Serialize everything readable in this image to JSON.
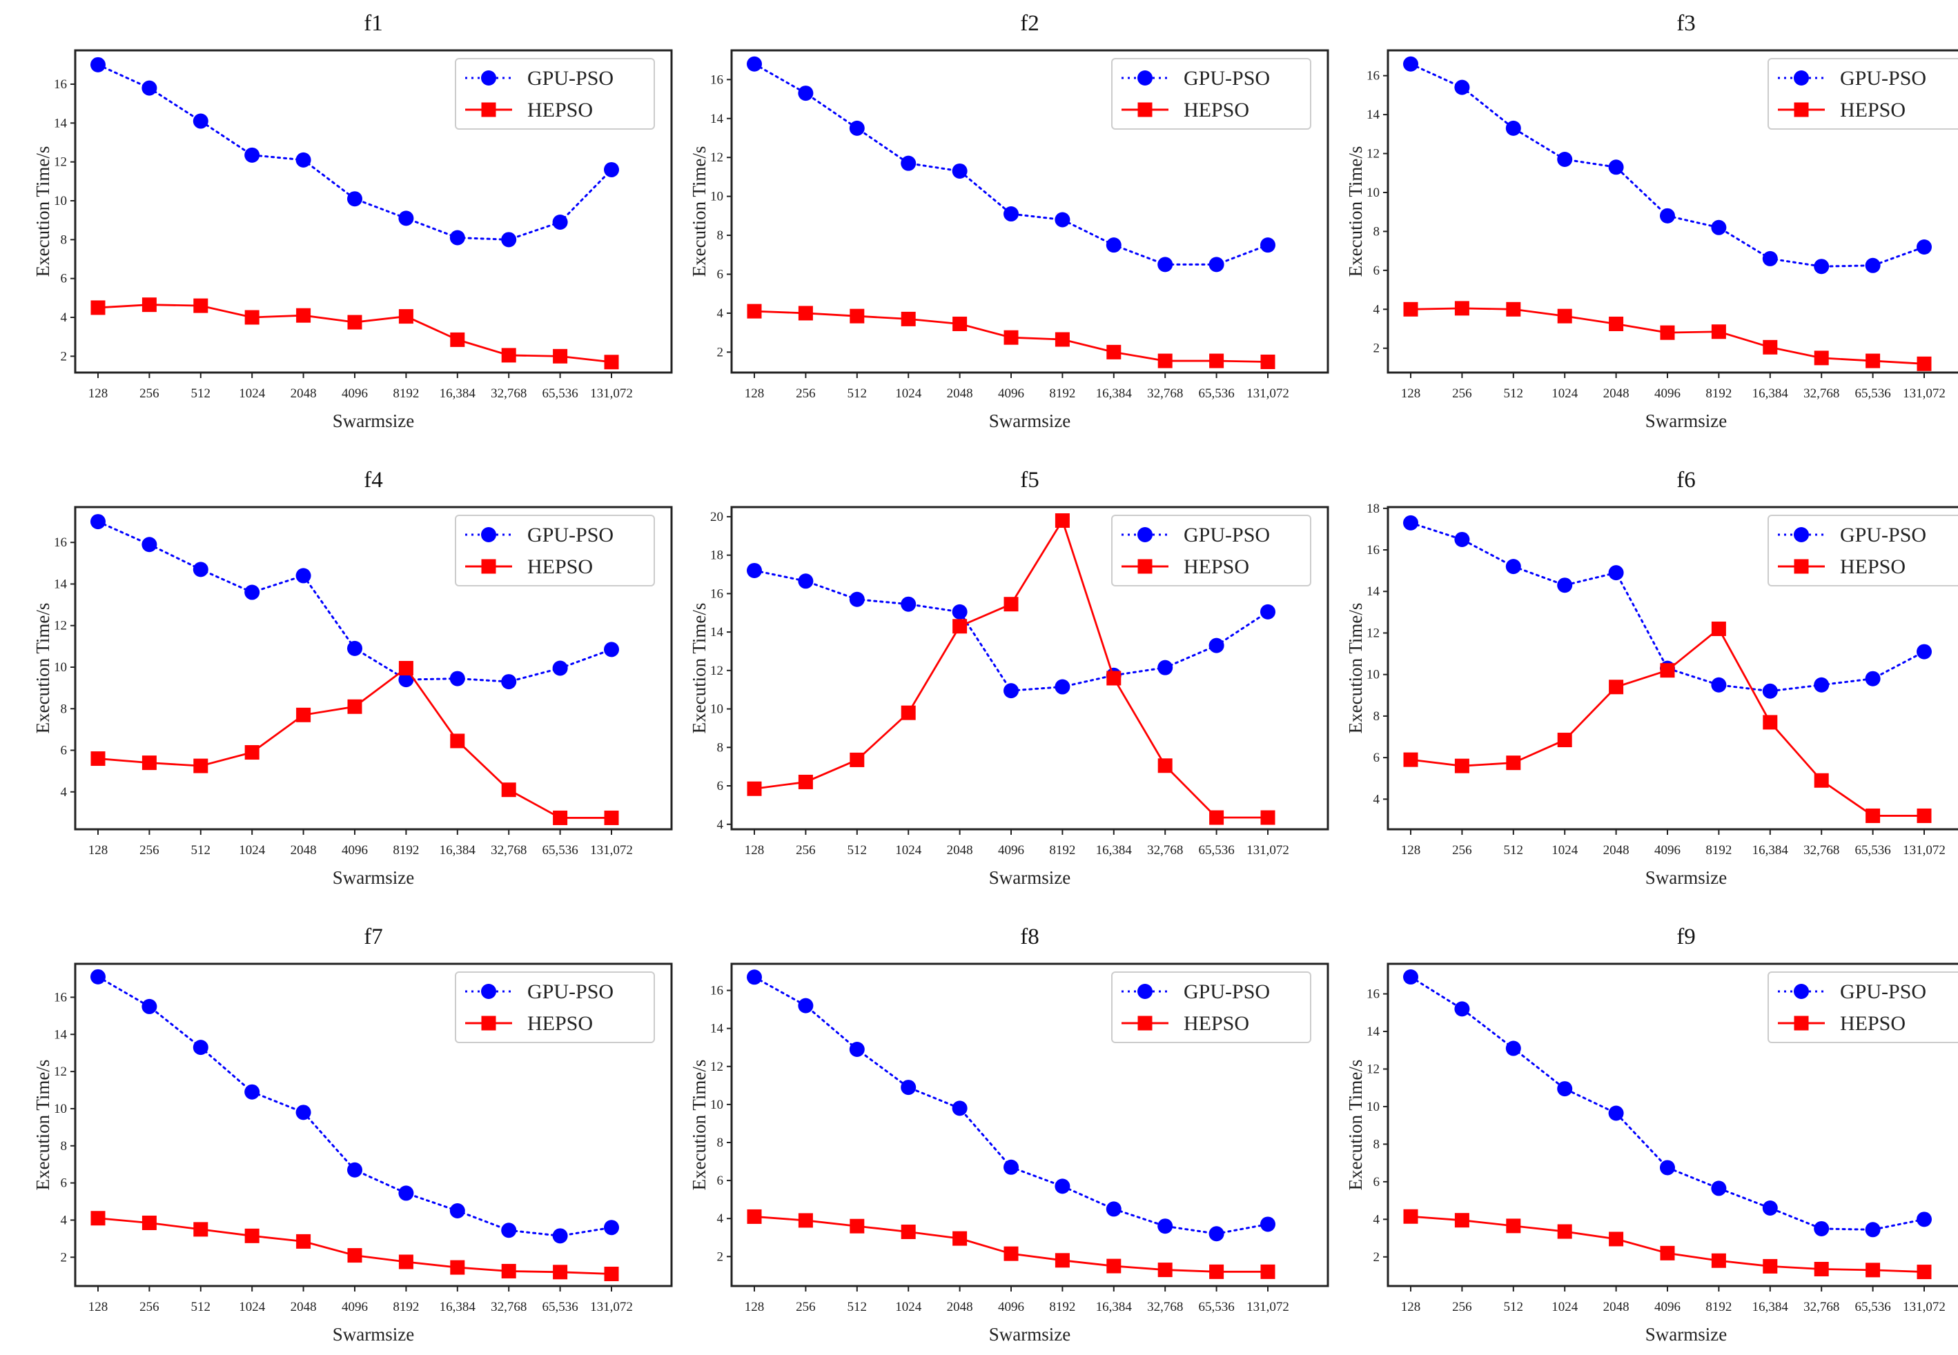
{
  "series_names": [
    "GPU-PSO",
    "HEPSO"
  ],
  "colors": {
    "GPU-PSO": "#0000ff",
    "HEPSO": "#ff0000"
  },
  "chart_data": [
    {
      "type": "line",
      "title": "f1",
      "xlabel": "Swarmsize",
      "ylabel": "Execution Time/s",
      "categories": [
        "128",
        "256",
        "512",
        "1024",
        "2048",
        "4096",
        "8192",
        "16,384",
        "32,768",
        "65,536",
        "131,072"
      ],
      "ylim": [
        1.16,
        17.74
      ],
      "yticks": [
        2,
        4,
        6,
        8,
        10,
        12,
        14,
        16
      ],
      "legend": "top-right",
      "series": [
        {
          "name": "GPU-PSO",
          "values": [
            17.0,
            15.8,
            14.1,
            12.35,
            12.1,
            10.1,
            9.1,
            8.1,
            8.0,
            8.9,
            11.6
          ]
        },
        {
          "name": "HEPSO",
          "values": [
            4.5,
            4.65,
            4.6,
            4.0,
            4.1,
            3.75,
            4.05,
            2.85,
            2.05,
            2.0,
            1.7
          ]
        }
      ]
    },
    {
      "type": "line",
      "title": "f2",
      "xlabel": "Swarmsize",
      "ylabel": "Execution Time/s",
      "categories": [
        "128",
        "256",
        "512",
        "1024",
        "2048",
        "4096",
        "8192",
        "16,384",
        "32,768",
        "65,536",
        "131,072"
      ],
      "ylim": [
        0.95,
        17.5
      ],
      "yticks": [
        2,
        4,
        6,
        8,
        10,
        12,
        14,
        16
      ],
      "legend": "top-right",
      "series": [
        {
          "name": "GPU-PSO",
          "values": [
            16.8,
            15.3,
            13.5,
            11.7,
            11.3,
            9.1,
            8.8,
            7.5,
            6.5,
            6.5,
            7.5
          ]
        },
        {
          "name": "HEPSO",
          "values": [
            4.1,
            4.0,
            3.85,
            3.7,
            3.45,
            2.75,
            2.65,
            2.0,
            1.55,
            1.55,
            1.5
          ]
        }
      ]
    },
    {
      "type": "line",
      "title": "f3",
      "xlabel": "Swarmsize",
      "ylabel": "Execution Time/s",
      "categories": [
        "128",
        "256",
        "512",
        "1024",
        "2048",
        "4096",
        "8192",
        "16,384",
        "32,768",
        "65,536",
        "131,072"
      ],
      "ylim": [
        0.75,
        17.3
      ],
      "yticks": [
        2,
        4,
        6,
        8,
        10,
        12,
        14,
        16
      ],
      "legend": "top-right",
      "series": [
        {
          "name": "GPU-PSO",
          "values": [
            16.6,
            15.4,
            13.3,
            11.7,
            11.3,
            8.8,
            8.2,
            6.6,
            6.2,
            6.25,
            7.2
          ]
        },
        {
          "name": "HEPSO",
          "values": [
            4.0,
            4.05,
            4.0,
            3.65,
            3.25,
            2.8,
            2.85,
            2.05,
            1.5,
            1.35,
            1.2
          ]
        }
      ]
    },
    {
      "type": "line",
      "title": "f4",
      "xlabel": "Swarmsize",
      "ylabel": "Execution Time/s",
      "categories": [
        "128",
        "256",
        "512",
        "1024",
        "2048",
        "4096",
        "8192",
        "16,384",
        "32,768",
        "65,536",
        "131,072"
      ],
      "ylim": [
        2.2,
        17.7
      ],
      "yticks": [
        4,
        6,
        8,
        10,
        12,
        14,
        16
      ],
      "legend": "top-right",
      "series": [
        {
          "name": "GPU-PSO",
          "values": [
            17.0,
            15.9,
            14.7,
            13.6,
            14.4,
            10.9,
            9.4,
            9.45,
            9.3,
            9.95,
            10.85
          ]
        },
        {
          "name": "HEPSO",
          "values": [
            5.6,
            5.4,
            5.25,
            5.9,
            7.7,
            8.1,
            9.95,
            6.45,
            4.1,
            2.75,
            2.75
          ]
        }
      ]
    },
    {
      "type": "line",
      "title": "f5",
      "xlabel": "Swarmsize",
      "ylabel": "Execution Time/s",
      "categories": [
        "128",
        "256",
        "512",
        "1024",
        "2048",
        "4096",
        "8192",
        "16,384",
        "32,768",
        "65,536",
        "131,072"
      ],
      "ylim": [
        3.74,
        20.5
      ],
      "yticks": [
        4,
        6,
        8,
        10,
        12,
        14,
        16,
        18,
        20
      ],
      "legend": "top-right",
      "series": [
        {
          "name": "GPU-PSO",
          "values": [
            17.2,
            16.65,
            15.7,
            15.45,
            15.05,
            10.95,
            11.15,
            11.75,
            12.15,
            13.3,
            15.05
          ]
        },
        {
          "name": "HEPSO",
          "values": [
            5.85,
            6.2,
            7.35,
            9.8,
            14.3,
            15.45,
            19.8,
            11.6,
            7.05,
            4.35,
            4.35
          ]
        }
      ]
    },
    {
      "type": "line",
      "title": "f6",
      "xlabel": "Swarmsize",
      "ylabel": "Execution Time/s",
      "categories": [
        "128",
        "256",
        "512",
        "1024",
        "2048",
        "4096",
        "8192",
        "16,384",
        "32,768",
        "65,536",
        "131,072"
      ],
      "ylim": [
        2.55,
        18.06
      ],
      "yticks": [
        4,
        6,
        8,
        10,
        12,
        14,
        16,
        18
      ],
      "legend": "top-right",
      "series": [
        {
          "name": "GPU-PSO",
          "values": [
            17.3,
            16.5,
            15.2,
            14.3,
            14.9,
            10.3,
            9.5,
            9.2,
            9.5,
            9.8,
            11.1
          ]
        },
        {
          "name": "HEPSO",
          "values": [
            5.9,
            5.6,
            5.75,
            6.85,
            9.4,
            10.2,
            12.2,
            7.7,
            4.9,
            3.2,
            3.2
          ]
        }
      ]
    },
    {
      "type": "line",
      "title": "f7",
      "xlabel": "Swarmsize",
      "ylabel": "Execution Time/s",
      "categories": [
        "128",
        "256",
        "512",
        "1024",
        "2048",
        "4096",
        "8192",
        "16,384",
        "32,768",
        "65,536",
        "131,072"
      ],
      "ylim": [
        0.45,
        17.8
      ],
      "yticks": [
        2,
        4,
        6,
        8,
        10,
        12,
        14,
        16
      ],
      "legend": "top-right",
      "series": [
        {
          "name": "GPU-PSO",
          "values": [
            17.1,
            15.5,
            13.3,
            10.9,
            9.8,
            6.7,
            5.45,
            4.5,
            3.45,
            3.15,
            3.6
          ]
        },
        {
          "name": "HEPSO",
          "values": [
            4.1,
            3.85,
            3.5,
            3.15,
            2.85,
            2.1,
            1.75,
            1.45,
            1.25,
            1.2,
            1.1
          ]
        }
      ]
    },
    {
      "type": "line",
      "title": "f8",
      "xlabel": "Swarmsize",
      "ylabel": "Execution Time/s",
      "categories": [
        "128",
        "256",
        "512",
        "1024",
        "2048",
        "4096",
        "8192",
        "16,384",
        "32,768",
        "65,536",
        "131,072"
      ],
      "ylim": [
        0.45,
        17.4
      ],
      "yticks": [
        2,
        4,
        6,
        8,
        10,
        12,
        14,
        16
      ],
      "legend": "top-right",
      "series": [
        {
          "name": "GPU-PSO",
          "values": [
            16.7,
            15.2,
            12.9,
            10.9,
            9.8,
            6.7,
            5.7,
            4.5,
            3.6,
            3.2,
            3.7
          ]
        },
        {
          "name": "HEPSO",
          "values": [
            4.1,
            3.9,
            3.6,
            3.3,
            2.95,
            2.15,
            1.8,
            1.5,
            1.3,
            1.2,
            1.2
          ]
        }
      ]
    },
    {
      "type": "line",
      "title": "f9",
      "xlabel": "Swarmsize",
      "ylabel": "Execution Time/s",
      "categories": [
        "128",
        "256",
        "512",
        "1024",
        "2048",
        "4096",
        "8192",
        "16,384",
        "32,768",
        "65,536",
        "131,072"
      ],
      "ylim": [
        0.45,
        17.6
      ],
      "yticks": [
        2,
        4,
        6,
        8,
        10,
        12,
        14,
        16
      ],
      "legend": "top-right",
      "series": [
        {
          "name": "GPU-PSO",
          "values": [
            16.9,
            15.2,
            13.1,
            10.95,
            9.65,
            6.75,
            5.65,
            4.6,
            3.5,
            3.45,
            4.0
          ]
        },
        {
          "name": "HEPSO",
          "values": [
            4.15,
            3.95,
            3.65,
            3.35,
            2.95,
            2.2,
            1.8,
            1.5,
            1.35,
            1.3,
            1.2
          ]
        }
      ]
    }
  ]
}
